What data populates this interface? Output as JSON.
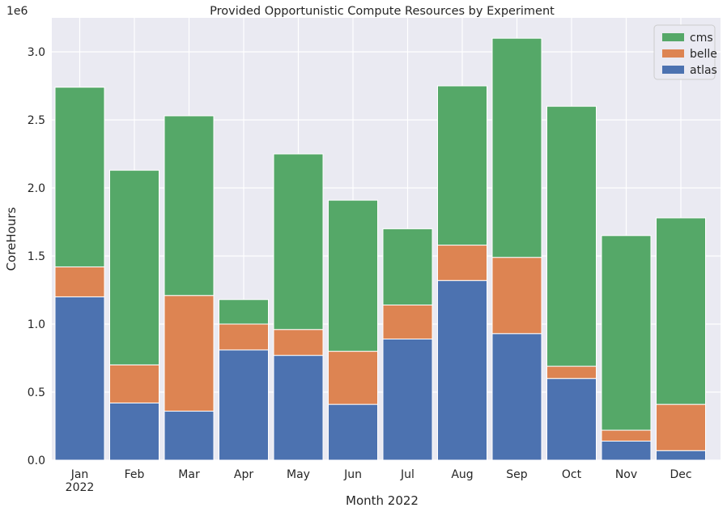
{
  "chart_data": {
    "type": "bar",
    "stacked": true,
    "title": "Provided Opportunistic Compute Resources by Experiment",
    "xlabel": "Month 2022",
    "ylabel": "CoreHours",
    "offset_label": "1e6",
    "ylim": [
      0,
      3.25
    ],
    "yticks": [
      "0.0",
      "0.5",
      "1.0",
      "1.5",
      "2.0",
      "2.5",
      "3.0"
    ],
    "grid": true,
    "legend_position": "top-right",
    "categories": [
      "Jan",
      "Feb",
      "Mar",
      "Apr",
      "May",
      "Jun",
      "Jul",
      "Aug",
      "Sep",
      "Oct",
      "Nov",
      "Dec"
    ],
    "category_sublabels": [
      "2022",
      "",
      "",
      "",
      "",
      "",
      "",
      "",
      "",
      "",
      "",
      ""
    ],
    "series": [
      {
        "name": "atlas",
        "color": "#4c72b0",
        "values": [
          1.2,
          0.42,
          0.36,
          0.81,
          0.77,
          0.41,
          0.89,
          1.32,
          0.93,
          0.6,
          0.14,
          0.07
        ]
      },
      {
        "name": "belle",
        "color": "#dd8452",
        "values": [
          0.22,
          0.28,
          0.85,
          0.19,
          0.19,
          0.39,
          0.25,
          0.26,
          0.56,
          0.09,
          0.08,
          0.34
        ]
      },
      {
        "name": "cms",
        "color": "#55a868",
        "values": [
          1.32,
          1.43,
          1.32,
          0.18,
          1.29,
          1.11,
          0.56,
          1.17,
          1.61,
          1.91,
          1.43,
          1.37
        ]
      }
    ],
    "legend_order": [
      "cms",
      "belle",
      "atlas"
    ]
  }
}
